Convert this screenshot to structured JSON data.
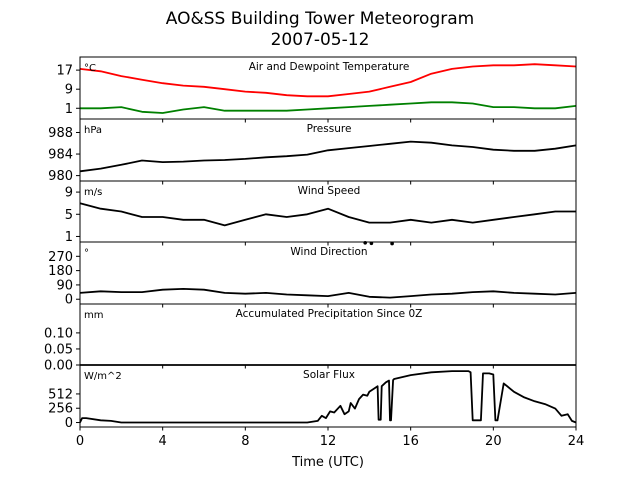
{
  "figure": {
    "title": "AO&SS Building Tower Meteorogram",
    "subtitle": "2007-05-12",
    "xlabel": "Time (UTC)"
  },
  "chart_data": [
    {
      "type": "line",
      "title": "Air and Dewpoint Temperature",
      "unit": "°C",
      "xlim": [
        0,
        24
      ],
      "ylim": [
        -3.5,
        22.5
      ],
      "yticks": [
        1,
        9,
        17
      ],
      "series": [
        {
          "color": "#ff0000",
          "x": [
            0,
            1,
            2,
            3,
            4,
            5,
            6,
            7,
            8,
            9,
            10,
            11,
            12,
            13,
            14,
            15,
            16,
            17,
            18,
            19,
            20,
            21,
            22,
            23,
            24
          ],
          "y": [
            17.5,
            16.5,
            14.5,
            13,
            11.5,
            10.5,
            10,
            9,
            8,
            7.5,
            6.5,
            6,
            6,
            7,
            8,
            10,
            12,
            15.5,
            17.5,
            18.5,
            19,
            19,
            19.5,
            19,
            18.5
          ]
        },
        {
          "color": "#008000",
          "x": [
            0,
            1,
            2,
            3,
            4,
            5,
            6,
            7,
            8,
            9,
            10,
            11,
            12,
            13,
            14,
            15,
            16,
            17,
            18,
            19,
            20,
            21,
            22,
            23,
            24
          ],
          "y": [
            1,
            1,
            1.5,
            -0.5,
            -1,
            0.5,
            1.5,
            0,
            0,
            0,
            0,
            0.5,
            1,
            1.5,
            2,
            2.5,
            3,
            3.5,
            3.5,
            3,
            1.5,
            1.5,
            1,
            1,
            2
          ]
        }
      ]
    },
    {
      "type": "line",
      "title": "Pressure",
      "unit": "hPa",
      "xlim": [
        0,
        24
      ],
      "ylim": [
        979,
        990.5
      ],
      "yticks": [
        980,
        984,
        988
      ],
      "series": [
        {
          "color": "#000000",
          "x": [
            0,
            1,
            2,
            3,
            4,
            5,
            6,
            7,
            8,
            9,
            10,
            11,
            12,
            13,
            14,
            15,
            16,
            17,
            18,
            19,
            20,
            21,
            22,
            23,
            24
          ],
          "y": [
            980.8,
            981.3,
            982,
            982.8,
            982.5,
            982.6,
            982.8,
            982.9,
            983.1,
            983.4,
            983.6,
            983.9,
            984.7,
            985.1,
            985.5,
            985.9,
            986.3,
            986.1,
            985.6,
            985.3,
            984.8,
            984.6,
            984.6,
            985,
            985.6
          ]
        }
      ]
    },
    {
      "type": "line",
      "title": "Wind Speed",
      "unit": "m/s",
      "xlim": [
        0,
        24
      ],
      "ylim": [
        0,
        11
      ],
      "yticks": [
        1,
        5,
        9
      ],
      "series": [
        {
          "color": "#000000",
          "x": [
            0,
            1,
            2,
            3,
            4,
            5,
            6,
            7,
            8,
            9,
            10,
            11,
            12,
            13,
            14,
            15,
            16,
            17,
            18,
            19,
            20,
            21,
            22,
            23,
            24
          ],
          "y": [
            7,
            6,
            5.5,
            4.5,
            4.5,
            4,
            4,
            3,
            4,
            5,
            4.5,
            5,
            6,
            4.5,
            3.5,
            3.5,
            4,
            3.5,
            4,
            3.5,
            4,
            4.5,
            5,
            5.5,
            5.5
          ]
        }
      ]
    },
    {
      "type": "line",
      "title": "Wind Direction",
      "unit": "°",
      "xlim": [
        0,
        24
      ],
      "ylim": [
        -30,
        360
      ],
      "yticks": [
        0,
        90,
        180,
        270
      ],
      "series": [
        {
          "color": "#000000",
          "x": [
            0,
            1,
            2,
            3,
            4,
            5,
            6,
            7,
            8,
            9,
            10,
            11,
            12,
            13,
            14,
            15,
            16,
            17,
            18,
            19,
            20,
            21,
            22,
            23,
            24
          ],
          "y": [
            40,
            50,
            45,
            45,
            60,
            65,
            60,
            40,
            35,
            40,
            30,
            25,
            20,
            40,
            15,
            10,
            20,
            30,
            35,
            45,
            50,
            40,
            35,
            30,
            40
          ]
        },
        {
          "color": "#000000",
          "mode": "points",
          "x": [
            13.8,
            14.1,
            15.1
          ],
          "y": [
            355,
            352,
            350
          ]
        }
      ]
    },
    {
      "type": "line",
      "title": "Accumulated Precipitation Since 0Z",
      "unit": "mm",
      "xlim": [
        0,
        24
      ],
      "ylim": [
        0,
        0.19
      ],
      "yticks": [
        0.0,
        0.05,
        0.1
      ],
      "ytick_labels": [
        "0.00",
        "0.05",
        "0.10"
      ],
      "series": [
        {
          "color": "#000000",
          "x": [
            0,
            24
          ],
          "y": [
            0,
            0
          ]
        }
      ]
    },
    {
      "type": "line",
      "title": "Solar Flux",
      "unit": "W/m^2",
      "xlim": [
        0,
        24
      ],
      "ylim": [
        -80,
        1030
      ],
      "yticks": [
        0,
        256,
        512
      ],
      "series": [
        {
          "color": "#000000",
          "x": [
            0,
            0.1,
            0.3,
            1,
            1.5,
            2,
            4,
            6,
            8,
            10,
            11,
            11.5,
            11.7,
            11.9,
            12.1,
            12.3,
            12.6,
            12.8,
            13,
            13.1,
            13.3,
            13.5,
            13.7,
            13.9,
            14,
            14.2,
            14.4,
            14.45,
            14.55,
            14.6,
            14.8,
            14.95,
            15,
            15.05,
            15.15,
            15.2,
            16,
            17,
            18,
            18.8,
            18.9,
            19,
            19.1,
            19.3,
            19.4,
            19.5,
            19.6,
            19.7,
            19.8,
            20,
            20.1,
            20.2,
            20.5,
            21,
            21.5,
            22,
            22.5,
            23,
            23.3,
            23.6,
            23.8,
            24
          ],
          "y": [
            0,
            80,
            80,
            40,
            30,
            0,
            0,
            0,
            0,
            0,
            0,
            30,
            120,
            80,
            200,
            180,
            300,
            150,
            200,
            350,
            250,
            420,
            500,
            480,
            550,
            600,
            650,
            50,
            50,
            650,
            720,
            750,
            40,
            40,
            760,
            780,
            850,
            900,
            920,
            920,
            900,
            40,
            40,
            40,
            40,
            880,
            880,
            880,
            880,
            860,
            40,
            40,
            700,
            550,
            450,
            380,
            330,
            250,
            120,
            150,
            30,
            0
          ]
        }
      ]
    }
  ]
}
